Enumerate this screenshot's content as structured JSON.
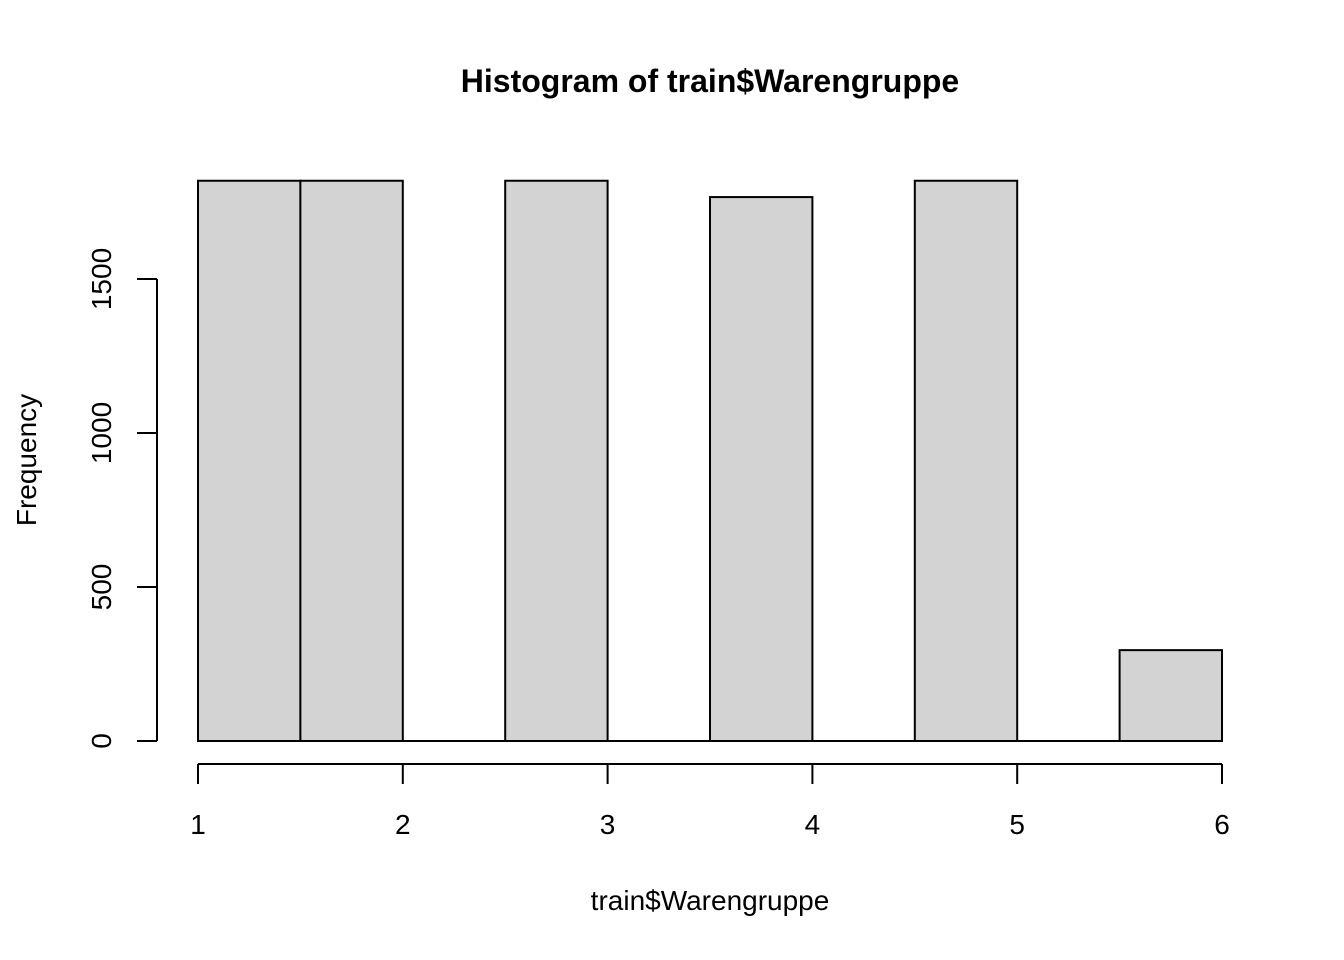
{
  "chart_data": {
    "type": "bar",
    "title": "Histogram of train$Warengruppe",
    "xlabel": "train$Warengruppe",
    "ylabel": "Frequency",
    "bins": [
      {
        "x0": 1.0,
        "x1": 1.5,
        "value": 1819
      },
      {
        "x0": 1.5,
        "x1": 2.0,
        "value": 1819
      },
      {
        "x0": 2.0,
        "x1": 2.5,
        "value": 0
      },
      {
        "x0": 2.5,
        "x1": 3.0,
        "value": 1819
      },
      {
        "x0": 3.0,
        "x1": 3.5,
        "value": 0
      },
      {
        "x0": 3.5,
        "x1": 4.0,
        "value": 1766
      },
      {
        "x0": 4.0,
        "x1": 4.5,
        "value": 0
      },
      {
        "x0": 4.5,
        "x1": 5.0,
        "value": 1819
      },
      {
        "x0": 5.0,
        "x1": 5.5,
        "value": 0
      },
      {
        "x0": 5.5,
        "x1": 6.0,
        "value": 295
      }
    ],
    "xlim": [
      1,
      6
    ],
    "ylim": [
      0,
      1819
    ],
    "x_ticks": [
      1,
      2,
      3,
      4,
      5,
      6
    ],
    "y_ticks": [
      0,
      500,
      1000,
      1500
    ],
    "grid": false,
    "colors": {
      "bar_fill": "#d3d3d3",
      "bar_stroke": "#000000"
    }
  }
}
